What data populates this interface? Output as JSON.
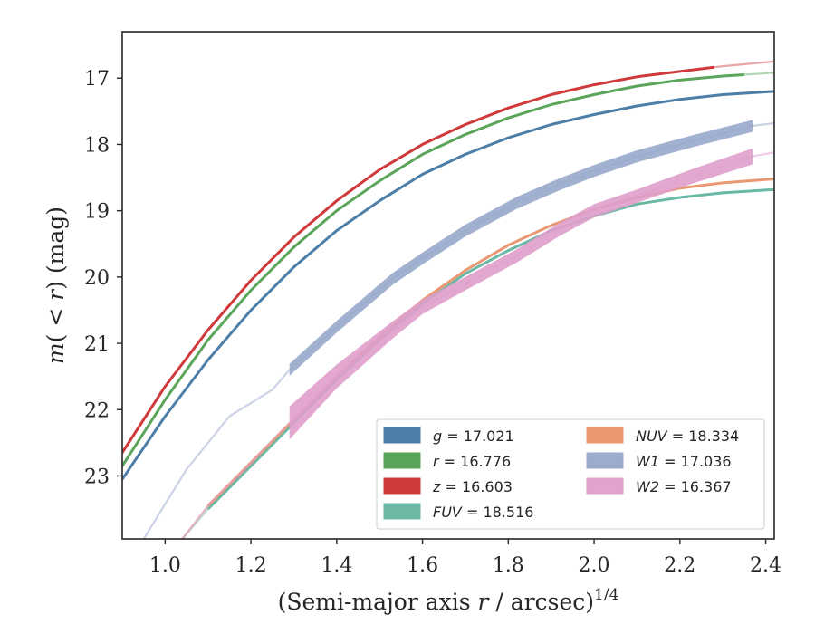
{
  "chart_data": {
    "type": "line",
    "title": "",
    "xlabel": "(Semi-major axis r / arcsec)",
    "xlabel_parts": {
      "prefix": "(Semi-major axis ",
      "var": "r",
      "suffix": " / arcsec)",
      "sup": "1/4"
    },
    "ylabel": "m(<r) (mag)",
    "ylabel_parts": {
      "var1": "m",
      "paren_open": "(",
      "lt": " < ",
      "var2": "r",
      "paren_close": ")",
      "unit": " (mag)"
    },
    "xlim": [
      0.9,
      2.42
    ],
    "ylim": [
      23.95,
      16.3
    ],
    "y_inverted": true,
    "xticks": [
      1.0,
      1.2,
      1.4,
      1.6,
      1.8,
      2.0,
      2.2,
      2.4
    ],
    "xtick_labels": [
      "1.0",
      "1.2",
      "1.4",
      "1.6",
      "1.8",
      "2.0",
      "2.2",
      "2.4"
    ],
    "yticks": [
      17,
      18,
      19,
      20,
      21,
      22,
      23
    ],
    "ytick_labels": [
      "17",
      "18",
      "19",
      "20",
      "21",
      "22",
      "23"
    ],
    "grid": false,
    "legend_position": "bottom-right",
    "series": [
      {
        "label_var": "g",
        "label_value": "= 17.021",
        "color": "#4c7ea8",
        "style": "line",
        "x": [
          0.9,
          1.0,
          1.1,
          1.2,
          1.3,
          1.4,
          1.5,
          1.6,
          1.7,
          1.8,
          1.9,
          2.0,
          2.1,
          2.2,
          2.3,
          2.42
        ],
        "y": [
          23.05,
          22.1,
          21.25,
          20.5,
          19.85,
          19.3,
          18.85,
          18.45,
          18.15,
          17.9,
          17.7,
          17.55,
          17.42,
          17.32,
          17.25,
          17.2
        ],
        "solid_range": [
          0.9,
          2.42
        ]
      },
      {
        "label_var": "r",
        "label_value": "= 16.776",
        "color": "#5aa55a",
        "style": "line",
        "x": [
          0.9,
          1.0,
          1.1,
          1.2,
          1.3,
          1.4,
          1.5,
          1.6,
          1.7,
          1.8,
          1.9,
          2.0,
          2.1,
          2.2,
          2.3,
          2.42
        ],
        "y": [
          22.85,
          21.85,
          20.95,
          20.2,
          19.55,
          19.0,
          18.55,
          18.15,
          17.85,
          17.6,
          17.4,
          17.25,
          17.12,
          17.03,
          16.97,
          16.92
        ],
        "solid_range": [
          0.9,
          2.35
        ]
      },
      {
        "label_var": "z",
        "label_value": "= 16.603",
        "color": "#d0393a",
        "style": "line",
        "x": [
          0.9,
          1.0,
          1.1,
          1.2,
          1.3,
          1.4,
          1.5,
          1.6,
          1.7,
          1.8,
          1.9,
          2.0,
          2.1,
          2.2,
          2.3,
          2.42
        ],
        "y": [
          22.65,
          21.65,
          20.8,
          20.05,
          19.4,
          18.85,
          18.38,
          18.0,
          17.7,
          17.45,
          17.25,
          17.1,
          16.98,
          16.9,
          16.82,
          16.75
        ],
        "solid_range": [
          0.9,
          2.28
        ]
      },
      {
        "label_var": "FUV",
        "label_value": "= 18.516",
        "color": "#6bb8a5",
        "style": "line",
        "x": [
          1.04,
          1.1,
          1.2,
          1.3,
          1.4,
          1.5,
          1.6,
          1.7,
          1.8,
          1.9,
          2.0,
          2.1,
          2.2,
          2.3,
          2.42
        ],
        "y": [
          23.95,
          23.5,
          22.85,
          22.2,
          21.55,
          20.95,
          20.4,
          19.95,
          19.6,
          19.3,
          19.08,
          18.9,
          18.8,
          18.73,
          18.68
        ],
        "solid_range": [
          1.1,
          2.42
        ]
      },
      {
        "label_var": "NUV",
        "label_value": "= 18.334",
        "color": "#e99872",
        "style": "line",
        "x": [
          1.04,
          1.1,
          1.2,
          1.3,
          1.4,
          1.5,
          1.6,
          1.7,
          1.8,
          1.9,
          2.0,
          2.1,
          2.2,
          2.3,
          2.42
        ],
        "y": [
          23.95,
          23.45,
          22.8,
          22.15,
          21.5,
          20.9,
          20.35,
          19.9,
          19.52,
          19.22,
          18.98,
          18.8,
          18.66,
          18.58,
          18.52
        ],
        "solid_range": [
          1.1,
          2.42
        ]
      },
      {
        "label_var": "W1",
        "label_value": "= 17.036",
        "color": "#98a8cb",
        "style": "band",
        "x": [
          0.95,
          1.05,
          1.15,
          1.25,
          1.29,
          1.4,
          1.53,
          1.6,
          1.7,
          1.82,
          1.92,
          2.0,
          2.1,
          2.23,
          2.37,
          2.42
        ],
        "y": [
          23.95,
          22.9,
          22.1,
          21.7,
          21.4,
          20.75,
          20.03,
          19.72,
          19.3,
          18.88,
          18.6,
          18.4,
          18.18,
          17.95,
          17.72,
          17.68
        ],
        "band_start": 1.29,
        "band_end": 2.37,
        "band_halfwidth": 0.09
      },
      {
        "label_var": "W2",
        "label_value": "= 16.367",
        "color": "#df9fcb",
        "style": "band",
        "x": [
          1.04,
          1.1,
          1.2,
          1.29,
          1.4,
          1.53,
          1.6,
          1.7,
          1.82,
          1.92,
          2.0,
          2.1,
          2.23,
          2.37,
          2.42
        ],
        "y": [
          23.95,
          23.45,
          22.8,
          22.2,
          21.5,
          20.8,
          20.45,
          20.1,
          19.68,
          19.28,
          19.0,
          18.78,
          18.48,
          18.18,
          18.12
        ],
        "band_start": 1.29,
        "band_end": 2.37,
        "band_halfwidths": [
          0.25,
          0.25,
          0.25,
          0.25,
          0.18,
          0.13,
          0.11,
          0.1,
          0.1,
          0.1,
          0.1,
          0.1,
          0.11,
          0.12,
          0.12
        ]
      }
    ]
  }
}
